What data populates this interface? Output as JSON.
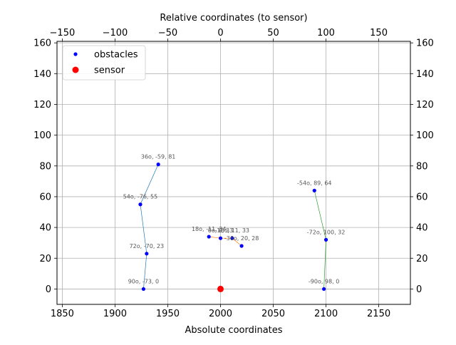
{
  "chart_data": {
    "type": "scatter",
    "title": "",
    "xlabel": "Absolute coordinates",
    "x2label": "Relative coordinates (to sensor)",
    "ylabel": "",
    "xlim": [
      1845,
      2180
    ],
    "ylim": [
      -10,
      161
    ],
    "x2lim": [
      -155,
      180
    ],
    "xticks": [
      1850,
      1900,
      1950,
      2000,
      2050,
      2100,
      2150
    ],
    "x2ticks": [
      -150,
      -100,
      -50,
      0,
      50,
      100,
      150
    ],
    "x2tick_labels": [
      "−150",
      "−100",
      "−50",
      "0",
      "50",
      "100",
      "150"
    ],
    "yticks": [
      0,
      20,
      40,
      60,
      80,
      100,
      120,
      140,
      160
    ],
    "grid": true,
    "legend": {
      "placement": "top-left",
      "entries": [
        {
          "label": "obstacles",
          "color": "#0000ff",
          "marker": "small-dot"
        },
        {
          "label": "sensor",
          "color": "#ff0000",
          "marker": "large-dot"
        }
      ]
    },
    "sensor": {
      "x": 2000,
      "y": 0
    },
    "series": [
      {
        "color": "#1f77b4",
        "points": [
          {
            "x": 1927,
            "y": 0,
            "label": "90o, -73, 0"
          },
          {
            "x": 1930,
            "y": 23,
            "label": "72o, -70, 23"
          },
          {
            "x": 1924,
            "y": 55,
            "label": "54o, -76, 55"
          },
          {
            "x": 1941,
            "y": 81,
            "label": "36o, -59, 81"
          }
        ]
      },
      {
        "color": "#ff7f0e",
        "points": [
          {
            "x": 1989,
            "y": 34,
            "label": "18o, -11, 34"
          },
          {
            "x": 2000,
            "y": 33,
            "label": "0o, 0, 33"
          },
          {
            "x": 2011,
            "y": 33,
            "label": "-18o, 11, 33"
          },
          {
            "x": 2020,
            "y": 28,
            "label": "-36o, 20, 28"
          }
        ]
      },
      {
        "color": "#2ca02c",
        "points": [
          {
            "x": 2089,
            "y": 64,
            "label": "-54o, 89, 64"
          },
          {
            "x": 2100,
            "y": 32,
            "label": "-72o, 100, 32"
          },
          {
            "x": 2098,
            "y": 0,
            "label": "-90o, 98, 0"
          }
        ]
      }
    ]
  }
}
